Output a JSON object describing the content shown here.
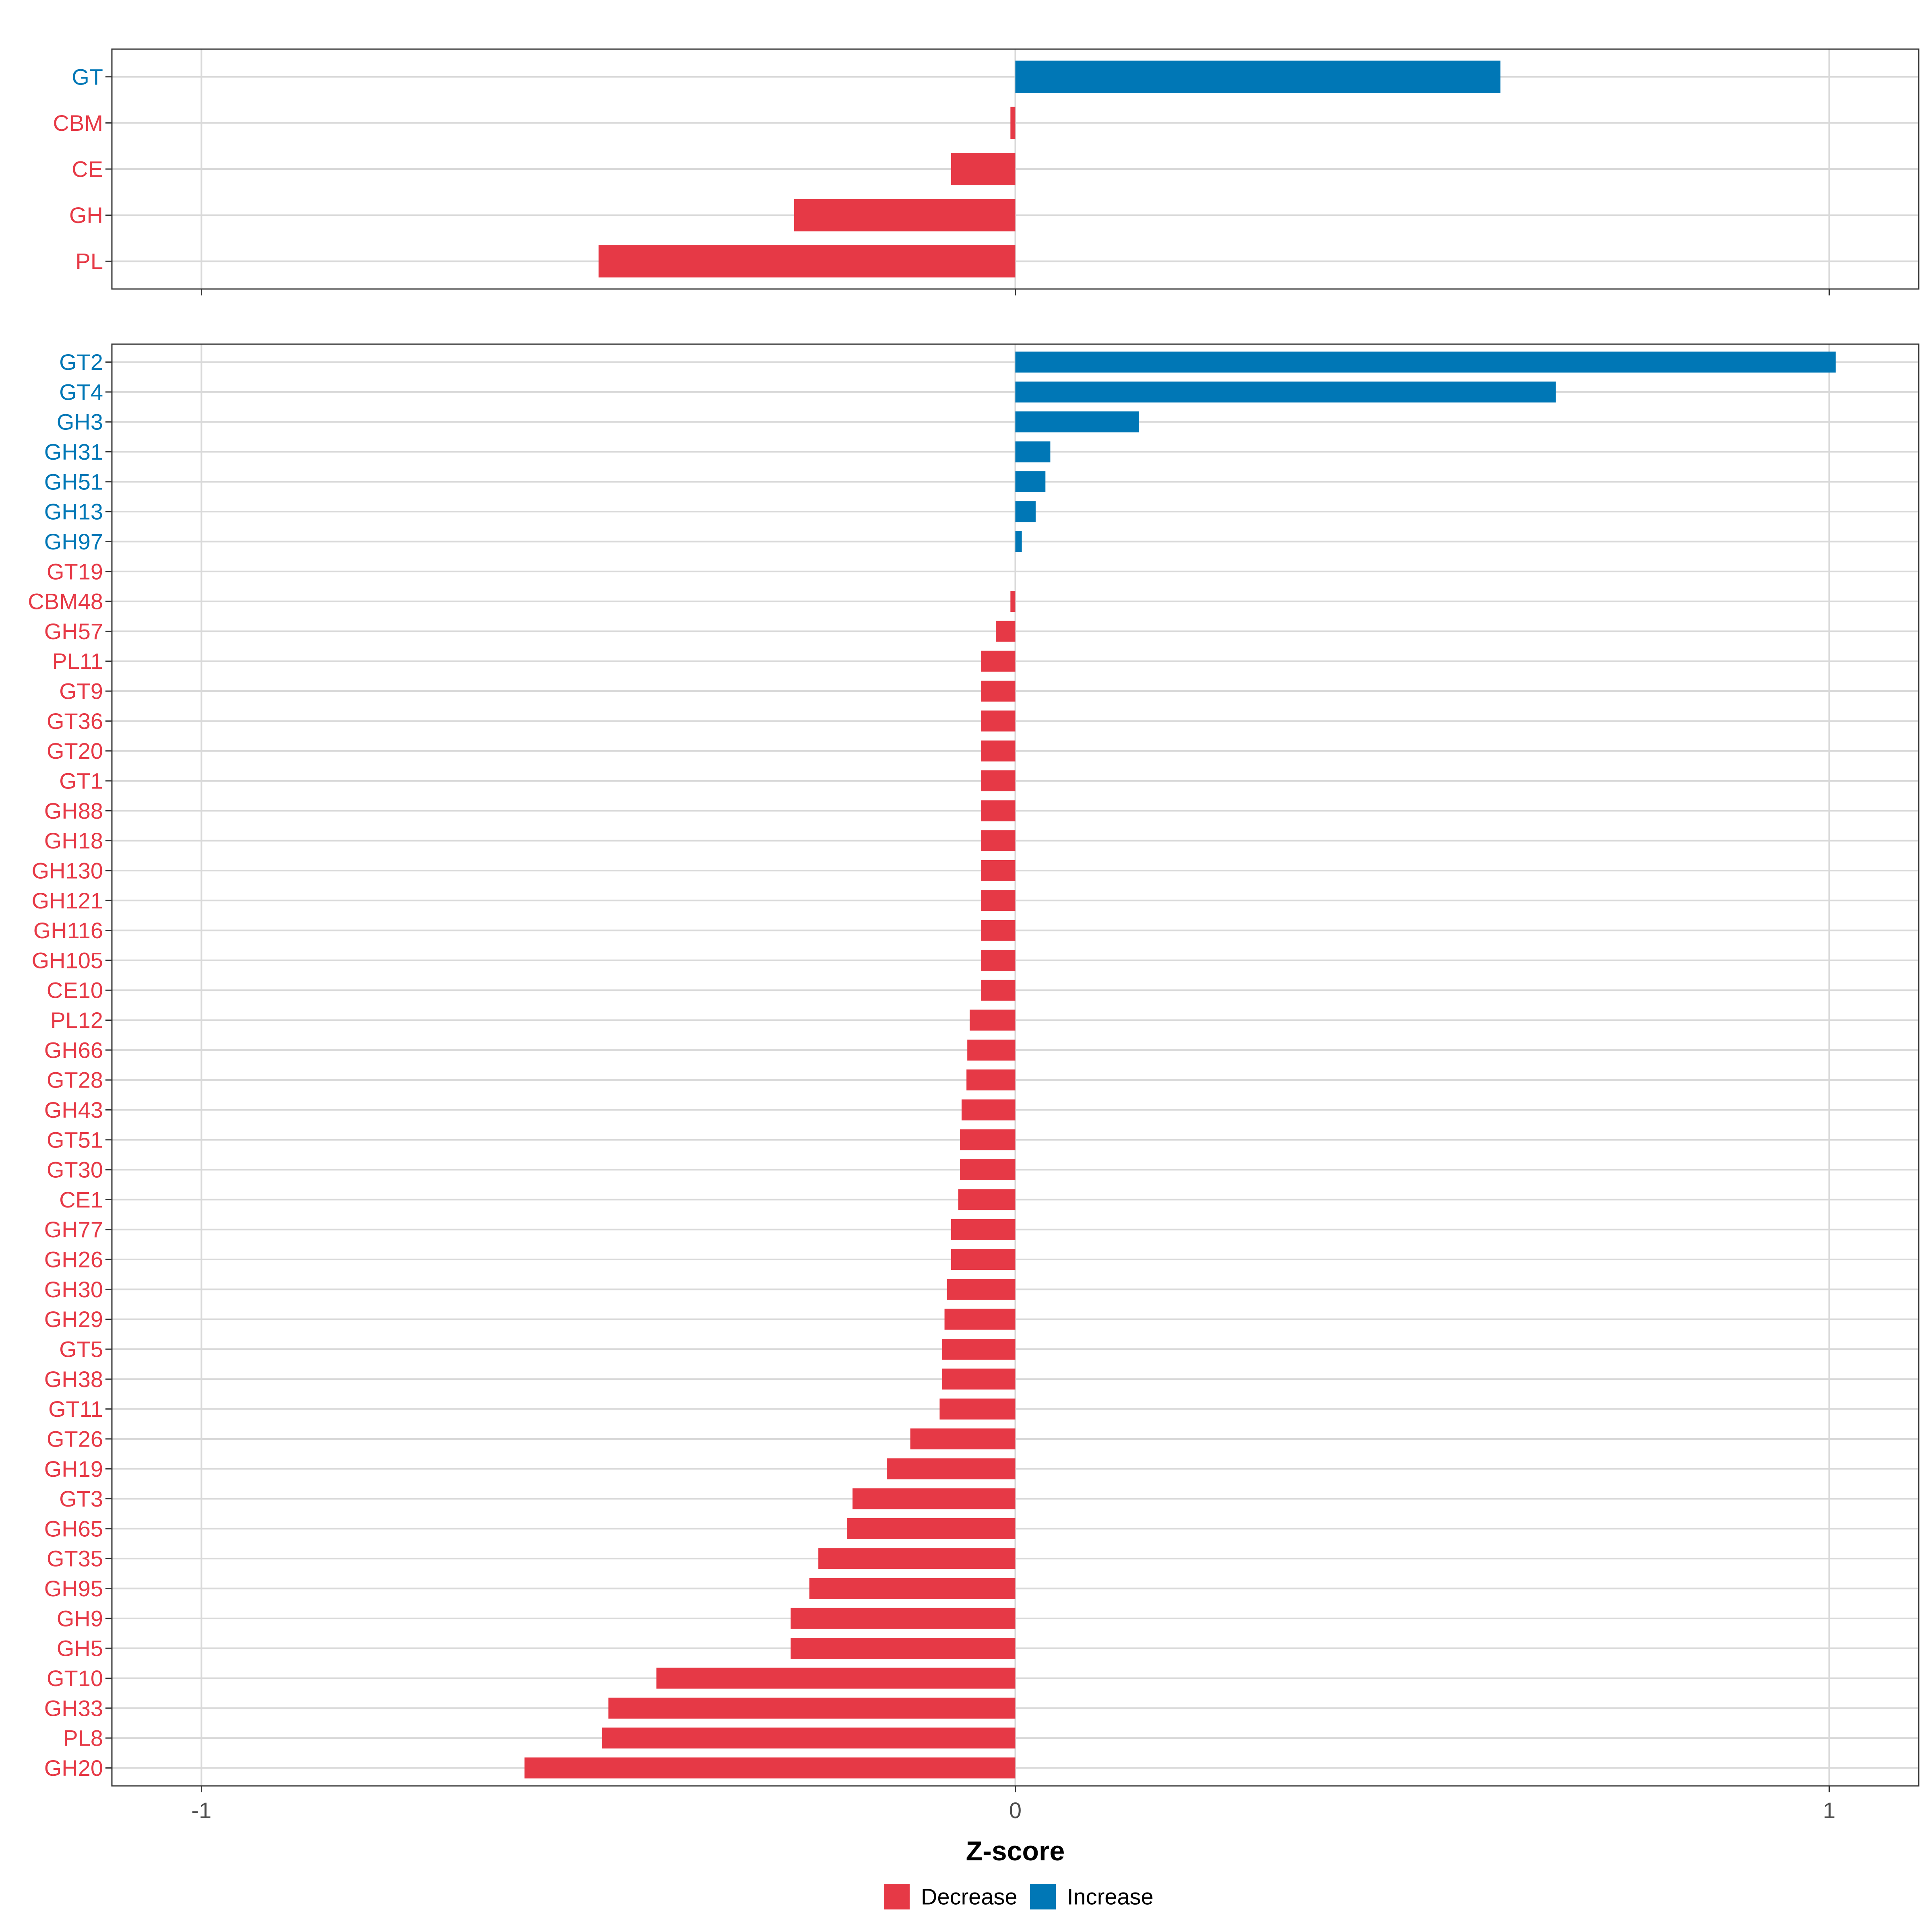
{
  "colors": {
    "decrease": "#E63946",
    "increase": "#0077B6",
    "grid": "#D9D9D9",
    "panel_border": "#333333",
    "axis_text": "#4D4D4D"
  },
  "chart_data": [
    {
      "type": "bar",
      "orientation": "horizontal",
      "panel": "top",
      "categories": [
        "GT",
        "CBM",
        "CE",
        "GH",
        "PL"
      ],
      "values": [
        0.596,
        -0.006,
        -0.079,
        -0.272,
        -0.512
      ],
      "direction": [
        "Increase",
        "Decrease",
        "Decrease",
        "Decrease",
        "Decrease"
      ],
      "xlim": [
        -1.11,
        1.11
      ],
      "xticks": [
        -1,
        0,
        1
      ],
      "grid": true
    },
    {
      "type": "bar",
      "orientation": "horizontal",
      "panel": "bottom",
      "categories": [
        "GT2",
        "GT4",
        "GH3",
        "GH31",
        "GH51",
        "GH13",
        "GH97",
        "GT19",
        "CBM48",
        "GH57",
        "PL11",
        "GT9",
        "GT36",
        "GT20",
        "GT1",
        "GH88",
        "GH18",
        "GH130",
        "GH121",
        "GH116",
        "GH105",
        "CE10",
        "PL12",
        "GH66",
        "GT28",
        "GH43",
        "GT51",
        "GT30",
        "CE1",
        "GH77",
        "GH26",
        "GH30",
        "GH29",
        "GT5",
        "GH38",
        "GT11",
        "GT26",
        "GH19",
        "GT3",
        "GH65",
        "GT35",
        "GH95",
        "GH9",
        "GH5",
        "GT10",
        "GH33",
        "PL8",
        "GH20"
      ],
      "values": [
        1.008,
        0.664,
        0.152,
        0.043,
        0.037,
        0.025,
        0.008,
        0.0,
        -0.006,
        -0.024,
        -0.042,
        -0.042,
        -0.042,
        -0.042,
        -0.042,
        -0.042,
        -0.042,
        -0.042,
        -0.042,
        -0.042,
        -0.042,
        -0.042,
        -0.056,
        -0.059,
        -0.06,
        -0.066,
        -0.068,
        -0.068,
        -0.07,
        -0.079,
        -0.079,
        -0.084,
        -0.087,
        -0.09,
        -0.09,
        -0.093,
        -0.129,
        -0.158,
        -0.2,
        -0.207,
        -0.242,
        -0.253,
        -0.276,
        -0.276,
        -0.441,
        -0.5,
        -0.508,
        -0.603
      ],
      "direction": [
        "Increase",
        "Increase",
        "Increase",
        "Increase",
        "Increase",
        "Increase",
        "Increase",
        "Decrease",
        "Decrease",
        "Decrease",
        "Decrease",
        "Decrease",
        "Decrease",
        "Decrease",
        "Decrease",
        "Decrease",
        "Decrease",
        "Decrease",
        "Decrease",
        "Decrease",
        "Decrease",
        "Decrease",
        "Decrease",
        "Decrease",
        "Decrease",
        "Decrease",
        "Decrease",
        "Decrease",
        "Decrease",
        "Decrease",
        "Decrease",
        "Decrease",
        "Decrease",
        "Decrease",
        "Decrease",
        "Decrease",
        "Decrease",
        "Decrease",
        "Decrease",
        "Decrease",
        "Decrease",
        "Decrease",
        "Decrease",
        "Decrease",
        "Decrease",
        "Decrease",
        "Decrease",
        "Decrease"
      ],
      "xlim": [
        -1.11,
        1.11
      ],
      "xticks": [
        -1,
        0,
        1
      ],
      "xtick_labels": [
        "-1",
        "0",
        "1"
      ],
      "xlabel": "Z-score",
      "grid": true
    }
  ],
  "legend": {
    "placement": "bottom",
    "items": [
      {
        "label": "Decrease",
        "key": "decrease"
      },
      {
        "label": "Increase",
        "key": "increase"
      }
    ]
  }
}
